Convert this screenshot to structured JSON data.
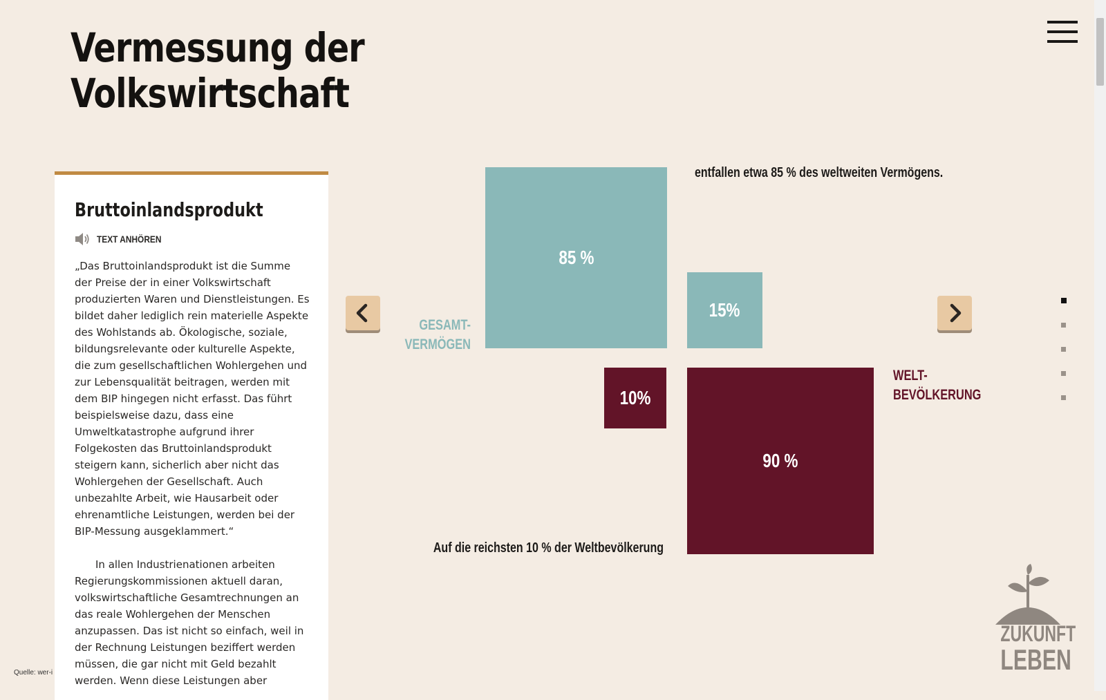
{
  "page": {
    "title_line1": "Vermessung der",
    "title_line2": "Volkswirtschaft"
  },
  "panel": {
    "heading": "Bruttoinlandsprodukt",
    "listen_label": "TEXT ANHÖREN",
    "paragraph1": "„Das Bruttoinlandsprodukt ist die Summe der Preise der in einer Volkswirtschaft produzierten Waren und Dienstleistungen. Es bildet daher lediglich rein materielle Aspekte des Wohlstands ab. Ökologische, soziale, bildungsrelevante oder kulturelle Aspekte, die zum gesellschaftlichen Wohlergehen und zur Lebensqualität beitragen, werden mit dem BIP hingegen nicht erfasst. Das führt beispielsweise dazu, dass eine Umweltkatastrophe aufgrund ihrer Folgekosten das Bruttoinlandsprodukt steigern kann, sicherlich aber nicht das Wohlergehen der Gesellschaft. Auch unbezahlte Arbeit, wie Hausarbeit oder ehrenamtliche Leistungen, werden bei der BIP-Messung ausgeklammert.“",
    "paragraph2": "In allen Industrienationen arbeiten Regierungskommissionen aktuell daran, volkswirtschaftliche Gesamtrechnungen an das reale Wohlergehen der Menschen anzupassen. Das ist nicht so einfach, weil in der Rechnung Leistungen beziffert werden müssen, die gar nicht mit Geld bezahlt werden. Wenn diese Leistungen aber"
  },
  "source": "Quelle: wer-i",
  "infographic": {
    "caption_top": "entfallen etwa 85 % des weltweiten Vermögens.",
    "caption_bottom": "Auf die reichsten 10 % der Weltbevölkerung",
    "label_vermoegen_line1": "GESAMT-",
    "label_vermoegen_line2": "VERMÖGEN",
    "label_bevoelkerung_line1": "WELT-",
    "label_bevoelkerung_line2": "BEVÖLKERUNG",
    "box_85": "85 %",
    "box_15": "15%",
    "box_10": "10%",
    "box_90": "90 %",
    "color_vermoegen": "#8ab8b8",
    "color_bevoelkerung": "#621428",
    "wealth_share_richest": 85,
    "wealth_share_rest": 15,
    "population_share_richest": 10,
    "population_share_rest": 90
  },
  "navigation": {
    "prev_icon": "chevron-left-icon",
    "next_icon": "chevron-right-icon",
    "menu_icon": "hamburger-menu-icon",
    "slides_count": 5,
    "active_slide": 1
  },
  "logo": {
    "line1": "ZUKUNFT",
    "line2": "LEBEN"
  },
  "colors": {
    "background": "#f4ece3",
    "accent": "#c08a43",
    "button": "#e8c9a3"
  }
}
